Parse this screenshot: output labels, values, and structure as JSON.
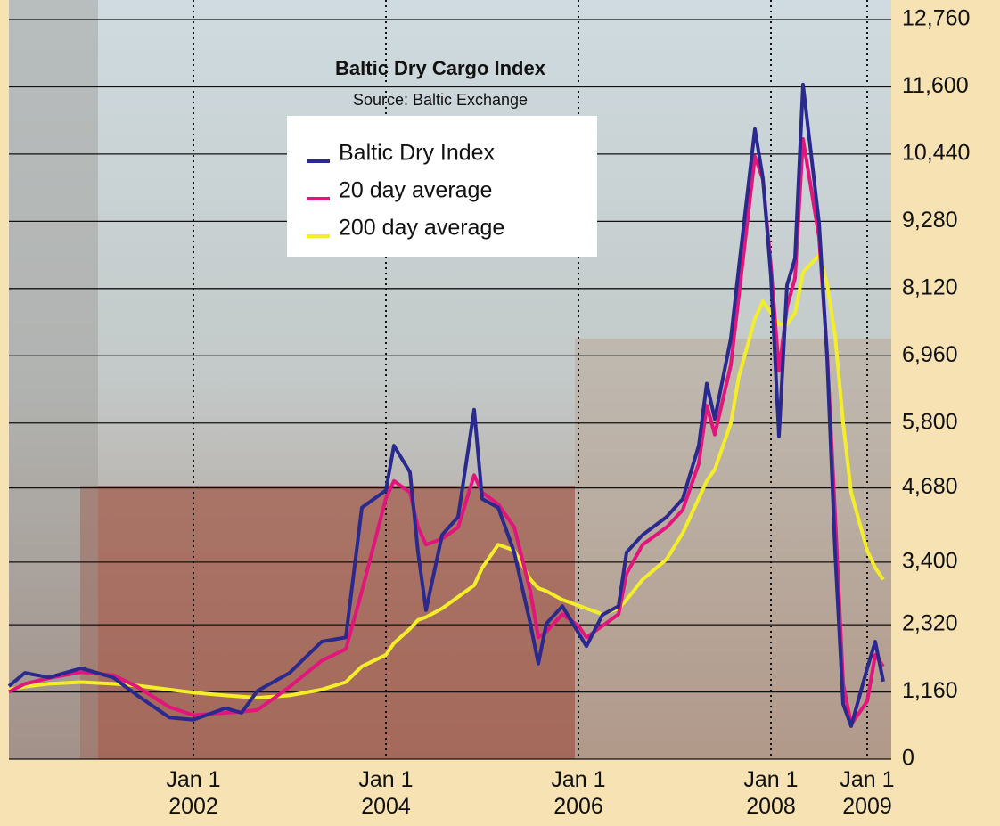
{
  "chart_data": {
    "type": "line",
    "title": "Baltic Dry Cargo Index",
    "subtitle": "Source: Baltic Exchange",
    "x": [
      "2000-02",
      "2000-04",
      "2000-07",
      "2000-11",
      "2001-03",
      "2001-06",
      "2001-10",
      "2002-01",
      "2002-05",
      "2002-07",
      "2002-09",
      "2003-01",
      "2003-05",
      "2003-08",
      "2003-10",
      "2004-01",
      "2004-02",
      "2004-04",
      "2004-05",
      "2004-06",
      "2004-08",
      "2004-10",
      "2004-12",
      "2005-01",
      "2005-03",
      "2005-05",
      "2005-07",
      "2005-08",
      "2005-09",
      "2005-11",
      "2006-01",
      "2006-02",
      "2006-04",
      "2006-06",
      "2006-07",
      "2006-09",
      "2006-12",
      "2007-02",
      "2007-04",
      "2007-05",
      "2007-06",
      "2007-08",
      "2007-09",
      "2007-11",
      "2007-12",
      "2008-01",
      "2008-02",
      "2008-03",
      "2008-04",
      "2008-05",
      "2008-07",
      "2008-08",
      "2008-09",
      "2008-10",
      "2008-11",
      "2009-01",
      "2009-02",
      "2009-03"
    ],
    "series": [
      {
        "name": "Baltic Dry Index",
        "color": "#2a2a8e",
        "values": [
          1260,
          1490,
          1410,
          1570,
          1410,
          1100,
          720,
          680,
          880,
          800,
          1180,
          1490,
          2030,
          2100,
          4340,
          4640,
          5410,
          4950,
          3570,
          2570,
          3870,
          4180,
          6030,
          4490,
          4340,
          3570,
          2340,
          1650,
          2340,
          2640,
          2180,
          1950,
          2490,
          2640,
          3570,
          3870,
          4180,
          4490,
          5410,
          6480,
          5870,
          7260,
          8490,
          10870,
          10020,
          8330,
          5570,
          8180,
          8640,
          11640,
          9250,
          6940,
          3570,
          950,
          570,
          1570,
          2030,
          1340
        ]
      },
      {
        "name": "20 day average",
        "color": "#e2157c",
        "values": [
          1160,
          1300,
          1400,
          1500,
          1450,
          1250,
          900,
          760,
          800,
          820,
          850,
          1250,
          1700,
          1900,
          2900,
          4500,
          4800,
          4600,
          4000,
          3700,
          3800,
          4000,
          4900,
          4600,
          4400,
          4000,
          2900,
          2100,
          2200,
          2500,
          2300,
          2100,
          2300,
          2500,
          3200,
          3700,
          4000,
          4300,
          5100,
          6100,
          5600,
          6800,
          8000,
          10400,
          10000,
          8500,
          6700,
          7800,
          8300,
          10700,
          9000,
          7000,
          4200,
          1300,
          600,
          1000,
          1800,
          1600
        ]
      },
      {
        "name": "200 day average",
        "color": "#f4ee2a",
        "values": [
          1200,
          1250,
          1300,
          1330,
          1300,
          1270,
          1200,
          1150,
          1100,
          1080,
          1060,
          1100,
          1200,
          1330,
          1600,
          1800,
          2000,
          2250,
          2400,
          2450,
          2600,
          2800,
          3000,
          3300,
          3700,
          3600,
          3100,
          2950,
          2900,
          2750,
          2650,
          2600,
          2500,
          2600,
          2750,
          3100,
          3450,
          3900,
          4500,
          4800,
          5000,
          5800,
          6600,
          7600,
          7900,
          7700,
          7500,
          7500,
          7700,
          8400,
          8700,
          8200,
          7300,
          5800,
          4600,
          3600,
          3300,
          3100
        ]
      }
    ],
    "xlim": [
      "2000-01",
      "2009-04"
    ],
    "xticks": [
      {
        "value": "2002-01-01",
        "label": "Jan 1 2002"
      },
      {
        "value": "2004-01-01",
        "label": "Jan 1 2004"
      },
      {
        "value": "2006-01-01",
        "label": "Jan 1 2006"
      },
      {
        "value": "2008-01-01",
        "label": "Jan 1 2008"
      },
      {
        "value": "2009-01-01",
        "label": "Jan 1 2009"
      }
    ],
    "ylim": [
      0,
      12760
    ],
    "yticks": [
      0,
      {
        "value": 1160,
        "label": "1,160"
      },
      {
        "value": 2320,
        "label": "2,320"
      },
      {
        "value": 3400,
        "label": "3,400"
      },
      {
        "value": 4680,
        "label": "4,680"
      },
      {
        "value": 5800,
        "label": "5,800"
      },
      {
        "value": 6960,
        "label": "6,960"
      },
      {
        "value": 8120,
        "label": "8,120"
      },
      {
        "value": 9280,
        "label": "9,280"
      },
      {
        "value": 10440,
        "label": "10,440"
      },
      {
        "value": 11600,
        "label": "11,600"
      },
      {
        "value": 12760,
        "label": "12,760"
      }
    ],
    "grid": true
  }
}
